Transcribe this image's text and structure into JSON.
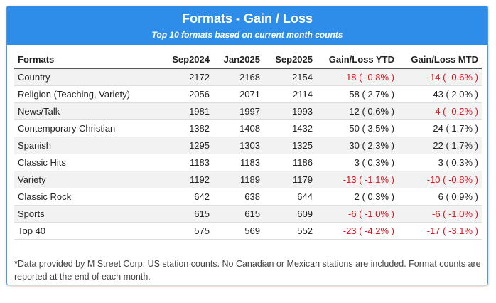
{
  "header": {
    "title": "Formats - Gain / Loss",
    "subtitle": "Top 10 formats based on current month counts"
  },
  "table": {
    "columns": [
      "Formats",
      "Sep2024",
      "Jan2025",
      "Sep2025",
      "Gain/Loss YTD",
      "Gain/Loss MTD"
    ],
    "rows": [
      [
        "Country",
        "2172",
        "2168",
        "2154",
        "-18 ( -0.8% )",
        "-14 ( -0.6% )"
      ],
      [
        "Religion (Teaching, Variety)",
        "2056",
        "2071",
        "2114",
        "58 ( 2.7% )",
        "43 ( 2.0% )"
      ],
      [
        "News/Talk",
        "1981",
        "1997",
        "1993",
        "12 ( 0.6% )",
        "-4 ( -0.2% )"
      ],
      [
        "Contemporary Christian",
        "1382",
        "1408",
        "1432",
        "50 ( 3.5% )",
        "24 ( 1.7% )"
      ],
      [
        "Spanish",
        "1295",
        "1303",
        "1325",
        "30 ( 2.3% )",
        "22 ( 1.7% )"
      ],
      [
        "Classic Hits",
        "1183",
        "1183",
        "1186",
        "3 ( 0.3% )",
        "3 ( 0.3% )"
      ],
      [
        "Variety",
        "1192",
        "1189",
        "1179",
        "-13 ( -1.1% )",
        "-10 ( -0.8% )"
      ],
      [
        "Classic Rock",
        "642",
        "638",
        "644",
        "2 ( 0.3% )",
        "6 ( 0.9% )"
      ],
      [
        "Sports",
        "615",
        "615",
        "609",
        "-6 ( -1.0% )",
        "-6 ( -1.0% )"
      ],
      [
        "Top 40",
        "575",
        "569",
        "552",
        "-23 ( -4.2% )",
        "-17 ( -3.1% )"
      ]
    ]
  },
  "footnote": "*Data provided by M Street Corp. US station counts. No Canadian or Mexican stations are included. Format counts are reported at the end of each month."
}
